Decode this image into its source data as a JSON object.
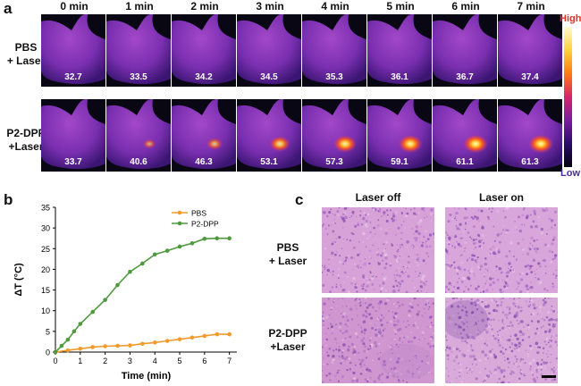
{
  "panel_a": {
    "letter": "a",
    "times": [
      "0 min",
      "1 min",
      "2 min",
      "3 min",
      "4 min",
      "5 min",
      "6 min",
      "7 min"
    ],
    "rows": [
      {
        "label_line1": "PBS",
        "label_line2": "+ Laser",
        "temps": [
          "32.7",
          "33.5",
          "34.2",
          "34.5",
          "35.3",
          "36.1",
          "36.7",
          "37.4"
        ],
        "hotspot": [
          0,
          0,
          0,
          0,
          0,
          0,
          0,
          0
        ]
      },
      {
        "label_line1": "P2-DPP",
        "label_line2": "+Laser",
        "temps": [
          "33.7",
          "40.6",
          "46.3",
          "53.1",
          "57.3",
          "59.1",
          "61.1",
          "61.3"
        ],
        "hotspot": [
          0.0,
          0.25,
          0.45,
          0.75,
          0.9,
          0.95,
          1.0,
          1.0
        ]
      }
    ],
    "colorbar": {
      "high": "High",
      "low": "Low",
      "colors": [
        "#fffbd0",
        "#ffd23c",
        "#ff7a12",
        "#d6246a",
        "#7a1c9e",
        "#2a0b6a",
        "#05030e"
      ]
    }
  },
  "panel_b": {
    "letter": "b",
    "chart_data": {
      "type": "line",
      "xlabel": "Time (min)",
      "ylabel": "ΔT (°C)",
      "xlim": [
        0,
        7.3
      ],
      "ylim": [
        0,
        35
      ],
      "xticks": [
        "0",
        "1",
        "2",
        "3",
        "4",
        "5",
        "6",
        "7"
      ],
      "yticks": [
        "0",
        "5",
        "10",
        "15",
        "20",
        "25",
        "30",
        "35"
      ],
      "legend_position": "top-right",
      "series": [
        {
          "name": "PBS",
          "color": "#f39a2d",
          "x": [
            0,
            0.5,
            1,
            1.5,
            2,
            2.5,
            3,
            3.5,
            4,
            4.5,
            5,
            5.5,
            6,
            6.5,
            7
          ],
          "y": [
            0,
            0.4,
            0.8,
            1.2,
            1.4,
            1.5,
            1.6,
            2.0,
            2.3,
            2.7,
            3.1,
            3.5,
            3.9,
            4.3,
            4.3
          ]
        },
        {
          "name": "P2-DPP",
          "color": "#4f9a3f",
          "x": [
            0,
            0.25,
            0.5,
            0.75,
            1,
            1.5,
            2,
            2.5,
            3,
            3.5,
            4,
            4.5,
            5,
            5.5,
            6,
            6.5,
            7
          ],
          "y": [
            0,
            1.5,
            3.0,
            5.0,
            6.8,
            9.7,
            12.6,
            16.2,
            19.4,
            21.4,
            23.6,
            24.5,
            25.5,
            26.3,
            27.4,
            27.5,
            27.5
          ]
        }
      ]
    }
  },
  "panel_c": {
    "letter": "c",
    "col_headers": [
      "Laser off",
      "Laser on"
    ],
    "rows": [
      {
        "label_line1": "PBS",
        "label_line2": "+ Laser"
      },
      {
        "label_line1": "P2-DPP",
        "label_line2": "+Laser"
      }
    ]
  }
}
